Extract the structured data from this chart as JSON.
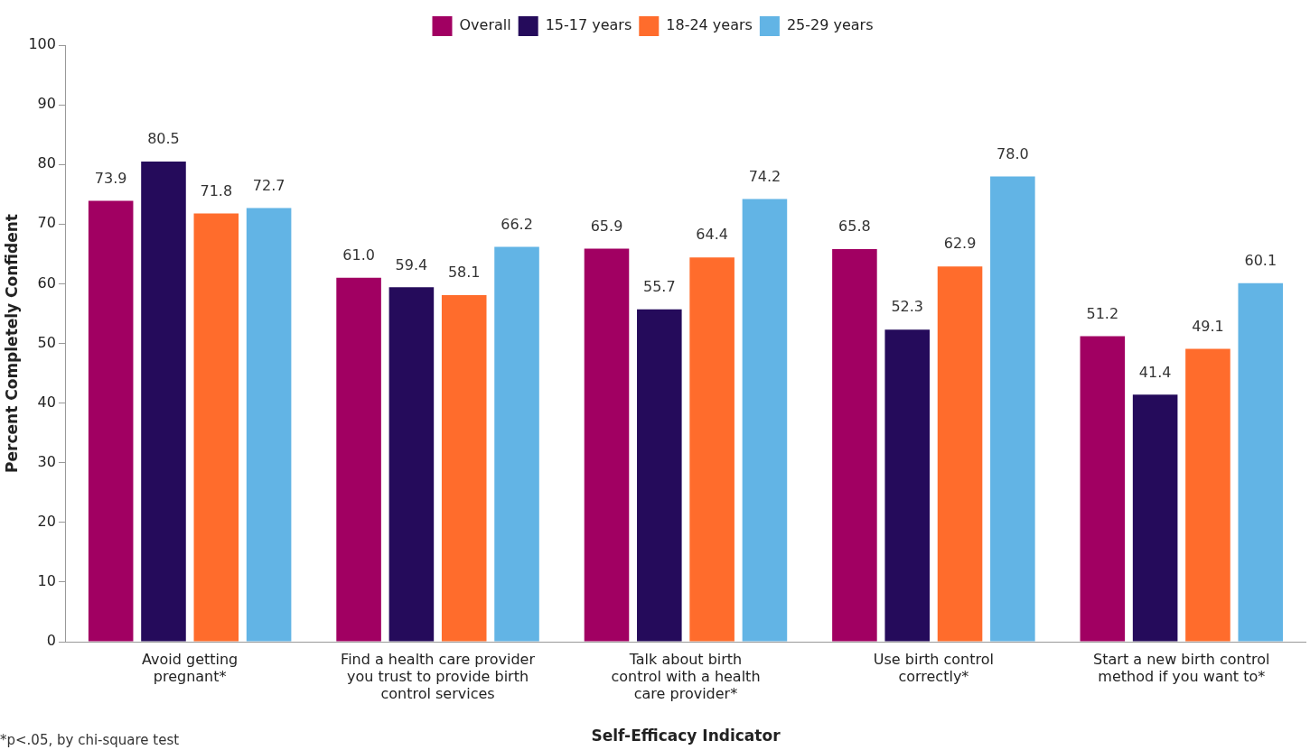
{
  "chart_data": {
    "type": "bar",
    "xlabel": "Self-Efficacy Indicator",
    "ylabel": "Percent Completely Confident",
    "categories": [
      "Avoid getting\npregnant*",
      "Find a health care provider\nyou trust to provide birth\ncontrol services",
      "Talk about birth\ncontrol with a health\ncare provider*",
      "Use birth control\ncorrectly*",
      "Start a new birth control\nmethod if you want to*"
    ],
    "series": [
      {
        "name": "Overall",
        "color": "#a10062",
        "values": [
          73.9,
          61.0,
          65.9,
          65.8,
          51.2
        ],
        "value_labels": [
          "73.9",
          "61.0",
          "65.9",
          "65.8",
          "51.2"
        ]
      },
      {
        "name": "15-17 years",
        "color": "#250b5b",
        "values": [
          80.5,
          59.4,
          55.7,
          52.3,
          41.4
        ],
        "value_labels": [
          "80.5",
          "59.4",
          "55.7",
          "52.3",
          "41.4"
        ]
      },
      {
        "name": "18-24 years",
        "color": "#ff6c2c",
        "values": [
          71.8,
          58.1,
          64.4,
          62.9,
          49.1
        ],
        "value_labels": [
          "71.8",
          "58.1",
          "64.4",
          "62.9",
          "49.1"
        ]
      },
      {
        "name": "25-29 years",
        "color": "#62b4e5",
        "values": [
          72.7,
          66.2,
          74.2,
          78.0,
          60.1
        ],
        "value_labels": [
          "72.7",
          "66.2",
          "74.2",
          "78.0",
          "60.1"
        ]
      }
    ],
    "ylim": [
      0,
      100
    ],
    "yticks": [
      0,
      10,
      20,
      30,
      40,
      50,
      60,
      70,
      80,
      90,
      100
    ],
    "grid": false,
    "legend": "top",
    "annotations": [
      "*p<.05, by chi-square test"
    ]
  }
}
